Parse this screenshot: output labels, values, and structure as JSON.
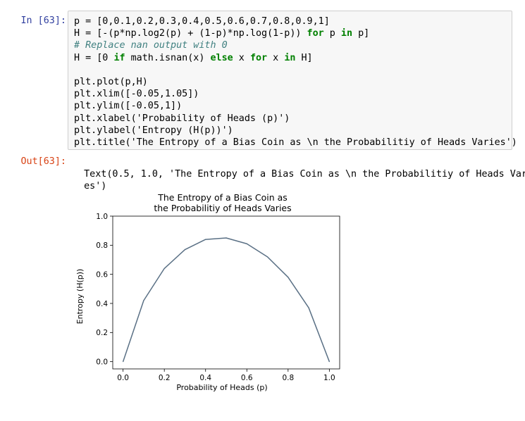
{
  "cell": {
    "in_prompt": "In [63]:",
    "out_prompt": "Out[63]:",
    "code_lines": [
      [
        {
          "t": "p = [0,0.1,0.2,0.3,0.4,0.5,0.6,0.7,0.8,0.9,1]"
        }
      ],
      [
        {
          "t": "H = [-(p*np.log2(p) + (1-p)*np.log(1-p)) "
        },
        {
          "t": "for",
          "k": "kw"
        },
        {
          "t": " p "
        },
        {
          "t": "in",
          "k": "kw"
        },
        {
          "t": " p]"
        }
      ],
      [
        {
          "t": "# Replace nan output with 0",
          "k": "cm"
        }
      ],
      [
        {
          "t": "H = [0 "
        },
        {
          "t": "if",
          "k": "kw"
        },
        {
          "t": " math.isnan(x) "
        },
        {
          "t": "else",
          "k": "kw"
        },
        {
          "t": " x "
        },
        {
          "t": "for",
          "k": "kw"
        },
        {
          "t": " x "
        },
        {
          "t": "in",
          "k": "kw"
        },
        {
          "t": " H]"
        }
      ],
      [
        {
          "t": ""
        }
      ],
      [
        {
          "t": "plt.plot(p,H)"
        }
      ],
      [
        {
          "t": "plt.xlim([-0.05,1.05])"
        }
      ],
      [
        {
          "t": "plt.ylim([-0.05,1])"
        }
      ],
      [
        {
          "t": "plt.xlabel('Probability of Heads (p)')"
        }
      ],
      [
        {
          "t": "plt.ylabel('Entropy (H(p))')"
        }
      ],
      [
        {
          "t": "plt.title('The Entropy of a Bias Coin as \\n the Probabilitiy of Heads Varies')"
        }
      ]
    ],
    "output_lines": [
      "Text(0.5, 1.0, 'The Entropy of a Bias Coin as \\n the Probabilitiy of Heads Vari",
      "es')"
    ]
  },
  "chart_data": {
    "type": "line",
    "title_lines": [
      "The Entropy of a Bias Coin as",
      "the Probabilitiy of Heads Varies"
    ],
    "xlabel": "Probability of Heads (p)",
    "ylabel": "Entropy (H(p))",
    "x": [
      0,
      0.1,
      0.2,
      0.3,
      0.4,
      0.5,
      0.6,
      0.7,
      0.8,
      0.9,
      1.0
    ],
    "y": [
      0,
      0.42,
      0.64,
      0.77,
      0.84,
      0.85,
      0.81,
      0.72,
      0.58,
      0.37,
      0
    ],
    "xlim": [
      -0.05,
      1.05
    ],
    "ylim": [
      -0.05,
      1.0
    ],
    "xticks": [
      "0.0",
      "0.2",
      "0.4",
      "0.6",
      "0.8",
      "1.0"
    ],
    "yticks": [
      "0.0",
      "0.2",
      "0.4",
      "0.6",
      "0.8",
      "1.0"
    ],
    "line_color": "#5a7085",
    "grid": false
  }
}
